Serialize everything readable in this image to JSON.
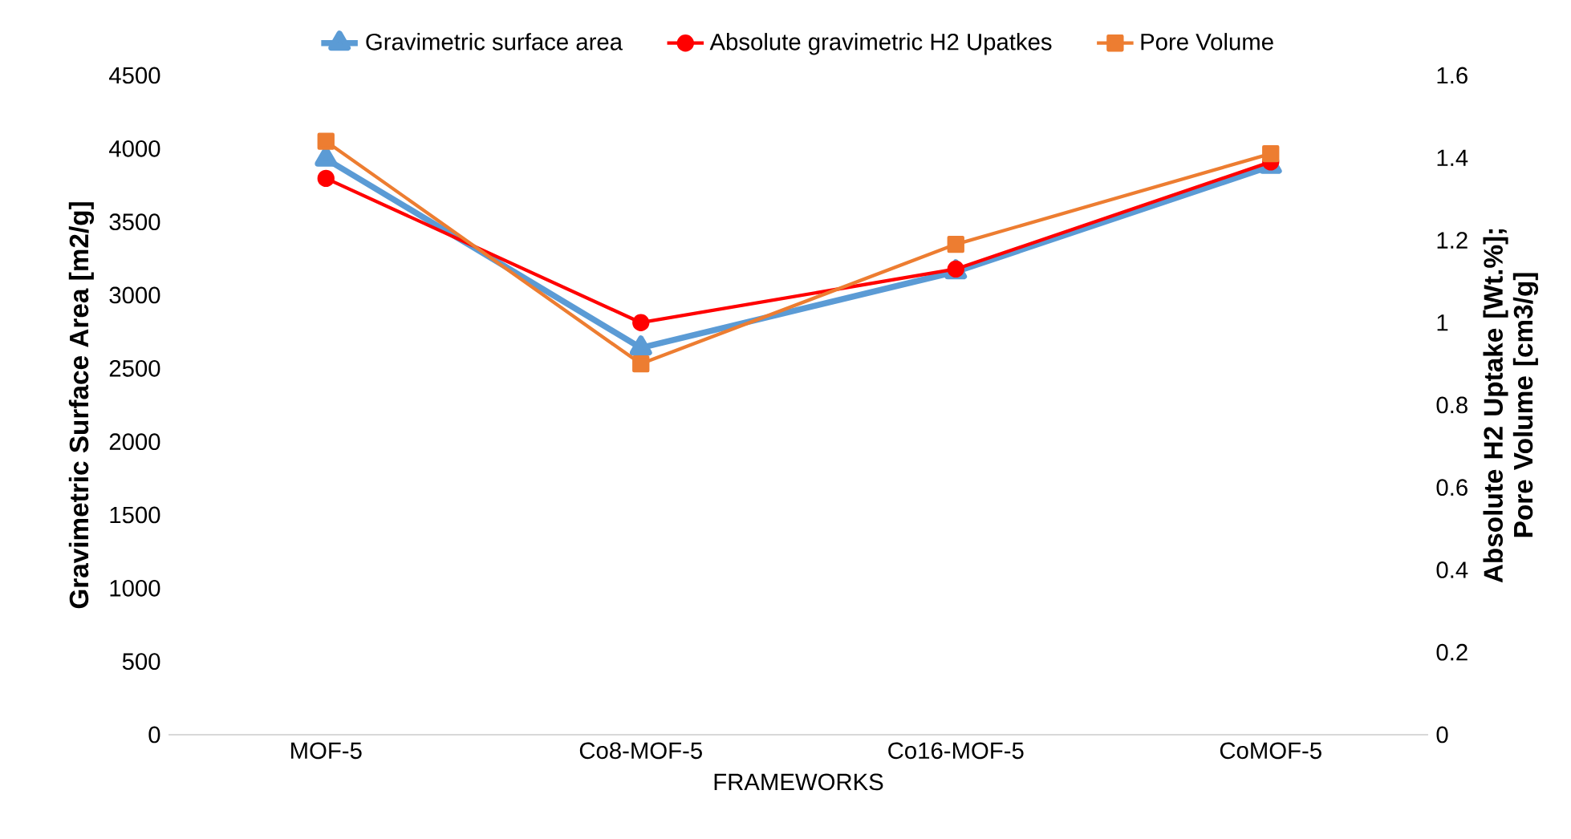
{
  "chart_data": {
    "type": "line",
    "xlabel": "FRAMEWORKS",
    "ylabel": "Gravimetric Surface Area [m2/g]",
    "y2label": "Absolute H2 Uptake [Wt.%]; Pore Volume [cm3/g]",
    "categories": [
      "MOF-5",
      "Co8-MOF-5",
      "Co16-MOF-5",
      "CoMOF-5"
    ],
    "series": [
      {
        "name": "Gravimetric surface area",
        "color": "#5b9bd5",
        "marker": "triangle",
        "values": [
          3930,
          2640,
          3160,
          3880
        ]
      },
      {
        "name": "Absolute gravimetric H2 Upatkes",
        "color": "#ff0000",
        "marker": "circle",
        "axis": "y2",
        "values": [
          1.35,
          1.0,
          1.13,
          1.39
        ]
      },
      {
        "name": "Pore Volume",
        "color": "#ed7d31",
        "marker": "square",
        "axis": "y2",
        "values": [
          1.44,
          0.9,
          1.19,
          1.41
        ]
      }
    ],
    "ylim": [
      0,
      4500
    ],
    "yticks": [
      0,
      500,
      1000,
      1500,
      2000,
      2500,
      3000,
      3500,
      4000,
      4500
    ],
    "y2lim": [
      0,
      1.6
    ],
    "y2ticks": [
      0,
      0.2,
      0.4,
      0.6,
      0.8,
      1,
      1.2,
      1.4,
      1.6
    ],
    "legend": "top",
    "grid": false,
    "line_style": "solid"
  }
}
